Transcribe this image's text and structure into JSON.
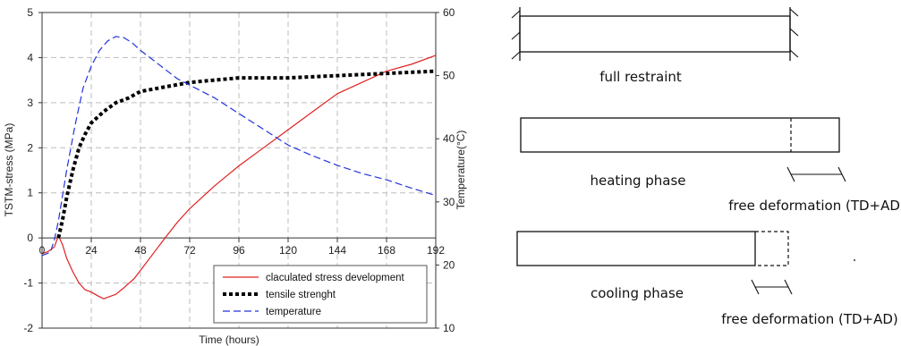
{
  "chart_data": {
    "type": "line",
    "xlabel": "Time (hours)",
    "ylabel": "TSTM-stress (MPa)",
    "y2label": "Temperature(°C)",
    "xlim": [
      0,
      192
    ],
    "ylim": [
      -2,
      5
    ],
    "y2lim": [
      10,
      60
    ],
    "xticks": [
      0,
      24,
      48,
      72,
      96,
      120,
      144,
      168,
      192
    ],
    "yticks": [
      -2,
      -1,
      0,
      1,
      2,
      3,
      4,
      5
    ],
    "y2ticks": [
      10,
      20,
      30,
      40,
      50,
      60
    ],
    "grid": true,
    "legend_position": "bottom-right",
    "series": [
      {
        "name": "claculated stress development",
        "axis": "left",
        "color": "#e02020",
        "style": "solid",
        "x": [
          0,
          3,
          6,
          8,
          10,
          12,
          15,
          18,
          21,
          24,
          27,
          30,
          33,
          36,
          40,
          45,
          50,
          55,
          60,
          66,
          72,
          84,
          96,
          108,
          120,
          132,
          144,
          156,
          168,
          180,
          192
        ],
        "y": [
          -0.35,
          -0.3,
          -0.2,
          0.05,
          -0.15,
          -0.45,
          -0.75,
          -1.0,
          -1.15,
          -1.2,
          -1.28,
          -1.35,
          -1.3,
          -1.25,
          -1.1,
          -0.9,
          -0.6,
          -0.3,
          0.0,
          0.35,
          0.65,
          1.15,
          1.6,
          2.0,
          2.4,
          2.8,
          3.2,
          3.45,
          3.7,
          3.85,
          4.05
        ]
      },
      {
        "name": "tensile strenght",
        "axis": "left",
        "color": "#000000",
        "style": "dotted",
        "x": [
          8,
          10,
          12,
          15,
          18,
          21,
          24,
          30,
          36,
          42,
          48,
          60,
          72,
          84,
          96,
          120,
          144,
          168,
          192
        ],
        "y": [
          0.0,
          0.4,
          0.9,
          1.5,
          2.0,
          2.3,
          2.55,
          2.8,
          3.0,
          3.1,
          3.25,
          3.35,
          3.45,
          3.5,
          3.55,
          3.55,
          3.6,
          3.65,
          3.7
        ]
      },
      {
        "name": "temperature",
        "axis": "right",
        "color": "#2233dd",
        "style": "dashed",
        "x": [
          0,
          4,
          6,
          8,
          10,
          12,
          16,
          20,
          24,
          28,
          32,
          36,
          40,
          44,
          48,
          54,
          60,
          66,
          72,
          84,
          96,
          108,
          120,
          132,
          144,
          156,
          168,
          180,
          192
        ],
        "y": [
          21.5,
          22.0,
          24.0,
          27.0,
          31.0,
          35.0,
          42.0,
          48.0,
          51.5,
          54.0,
          55.5,
          56.2,
          56.0,
          55.2,
          54.0,
          52.5,
          51.0,
          49.5,
          48.5,
          46.5,
          44.0,
          41.5,
          39.0,
          37.3,
          35.8,
          34.5,
          33.5,
          32.2,
          31.0
        ]
      }
    ]
  },
  "diagram": {
    "full_restraint": "full restraint",
    "heating_phase": "heating phase",
    "cooling_phase": "cooling phase",
    "free_deformation_1": "free deformation (TD+AD)",
    "free_deformation_2": "free deformation (TD+AD)"
  }
}
